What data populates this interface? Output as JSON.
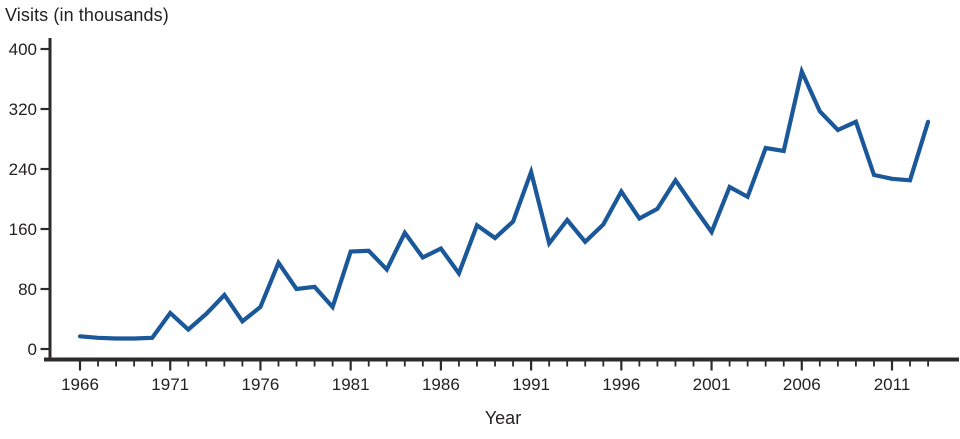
{
  "chart_data": {
    "type": "line",
    "title": "Visits (in thousands)",
    "xlabel": "Year",
    "x": [
      1966,
      1967,
      1968,
      1969,
      1970,
      1971,
      1972,
      1973,
      1974,
      1975,
      1976,
      1977,
      1978,
      1979,
      1980,
      1981,
      1982,
      1983,
      1984,
      1985,
      1986,
      1987,
      1988,
      1989,
      1990,
      1991,
      1992,
      1993,
      1994,
      1995,
      1996,
      1997,
      1998,
      1999,
      2000,
      2001,
      2002,
      2003,
      2004,
      2005,
      2006,
      2007,
      2008,
      2009,
      2010,
      2011,
      2012,
      2013
    ],
    "values": [
      17,
      15,
      14,
      14,
      15,
      48,
      26,
      47,
      72,
      37,
      56,
      115,
      80,
      83,
      56,
      130,
      131,
      106,
      155,
      122,
      134,
      101,
      165,
      148,
      170,
      236,
      141,
      172,
      143,
      166,
      210,
      174,
      187,
      225,
      190,
      156,
      216,
      203,
      268,
      264,
      370,
      317,
      292,
      303,
      232,
      227,
      225,
      303
    ],
    "ylim": [
      0,
      400
    ],
    "xlim": [
      1966,
      2013
    ],
    "yticks": [
      0,
      80,
      160,
      240,
      320,
      400
    ],
    "xticks_labeled": [
      1966,
      1971,
      1976,
      1981,
      1986,
      1991,
      1996,
      2001,
      2006,
      2011
    ],
    "xticks_minor_every_year": true,
    "grid": false,
    "legend": "none",
    "line_color": "#1b5899",
    "axis_color": "#2d2a2b",
    "text_color": "#231f20"
  }
}
